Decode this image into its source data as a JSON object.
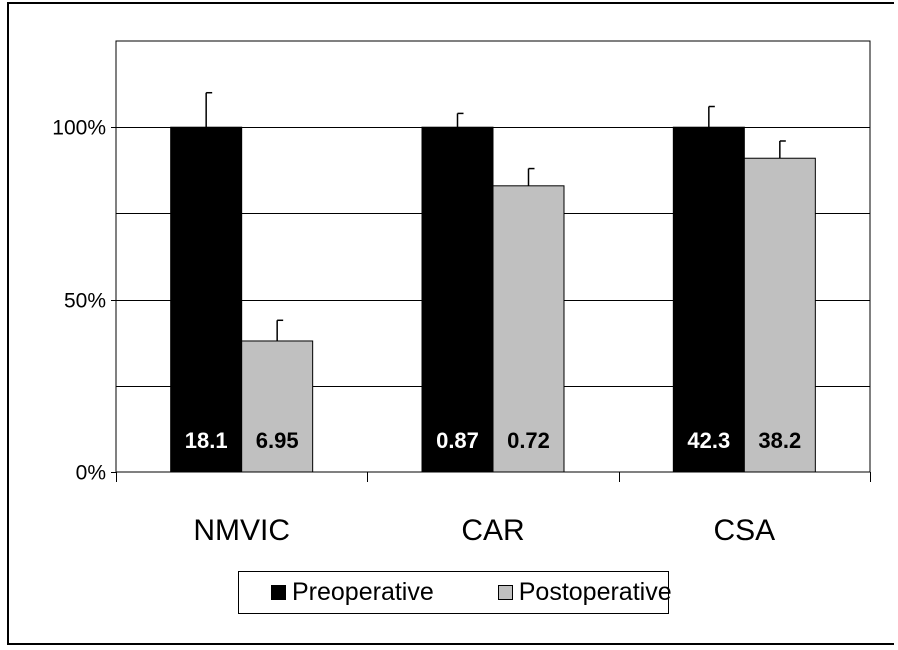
{
  "chart_data": {
    "type": "bar",
    "categories": [
      "NMVIC",
      "CAR",
      "CSA"
    ],
    "series": [
      {
        "name": "Preoperative",
        "color": "#000000",
        "values": [
          100,
          100,
          100
        ],
        "error": [
          10,
          4,
          6
        ],
        "data_labels": [
          "18.1",
          "0.87",
          "42.3"
        ],
        "label_color": "#ffffff"
      },
      {
        "name": "Postoperative",
        "color": "#c0c0c0",
        "values": [
          38,
          83,
          91
        ],
        "error": [
          6,
          5,
          5
        ],
        "data_labels": [
          "6.95",
          "0.72",
          "38.2"
        ],
        "label_color": "#000000"
      }
    ],
    "ylim": [
      0,
      125
    ],
    "yticks": [
      {
        "value": 0,
        "label": "0%"
      },
      {
        "value": 50,
        "label": "50%"
      },
      {
        "value": 100,
        "label": "100%"
      }
    ],
    "gridlines": [
      25,
      50,
      75,
      100
    ],
    "grid": true,
    "legend_position": "bottom"
  }
}
